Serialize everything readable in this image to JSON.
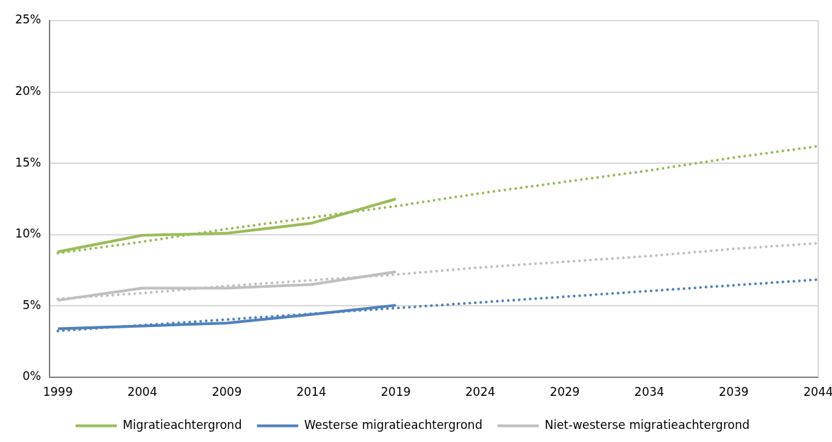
{
  "chart_data": {
    "type": "line",
    "x": [
      1999,
      2004,
      2009,
      2014,
      2019,
      2024,
      2029,
      2034,
      2039,
      2044
    ],
    "series": [
      {
        "name": "Migratieachtergrond",
        "color": "#9bbb59",
        "values": [
          8.8,
          9.95,
          10.1,
          10.8,
          12.5,
          null,
          null,
          null,
          null,
          null
        ],
        "line_style": "solid"
      },
      {
        "name": "Westerse migratieachtergrond",
        "color": "#4f81bd",
        "values": [
          3.4,
          3.6,
          3.8,
          4.4,
          5.05,
          null,
          null,
          null,
          null,
          null
        ],
        "line_style": "solid"
      },
      {
        "name": "Niet-westerse migratieachtergrond",
        "color": "#bfbfbf",
        "values": [
          5.4,
          6.25,
          6.25,
          6.5,
          7.4,
          null,
          null,
          null,
          null,
          null
        ],
        "line_style": "solid"
      },
      {
        "type": "line",
        "color": "#9bbb59",
        "values": [
          8.7,
          9.5,
          10.4,
          11.2,
          12.0,
          12.9,
          13.7,
          14.5,
          15.4,
          16.2
        ],
        "line_style": "dotted"
      },
      {
        "type": "line",
        "color": "#bfbfbf",
        "values": [
          5.5,
          5.9,
          6.4,
          6.8,
          7.2,
          7.7,
          8.1,
          8.5,
          9.0,
          9.4
        ],
        "line_style": "dotted"
      },
      {
        "type": "line",
        "color": "#4f81bd",
        "values": [
          3.25,
          3.65,
          4.05,
          4.45,
          4.85,
          5.25,
          5.65,
          6.05,
          6.45,
          6.85
        ],
        "line_style": "dotted"
      }
    ],
    "xlim": [
      1998.5,
      2044
    ],
    "xticks": [
      1999,
      2004,
      2009,
      2014,
      2019,
      2024,
      2029,
      2034,
      2039,
      2044
    ],
    "ylim": [
      0,
      25
    ],
    "yticks": [
      {
        "value": 0,
        "label": "0%"
      },
      {
        "value": 5,
        "label": "5%"
      },
      {
        "value": 10,
        "label": "10%"
      },
      {
        "value": 15,
        "label": "15%"
      },
      {
        "value": 20,
        "label": "20%"
      },
      {
        "value": 25,
        "label": "25%"
      }
    ],
    "grid": "y",
    "legend": "bottom",
    "marker": "none"
  }
}
